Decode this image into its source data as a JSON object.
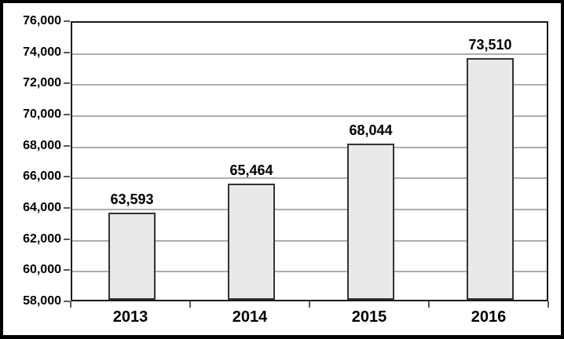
{
  "figure": {
    "background": "#ffffff",
    "border_color": "#000000"
  },
  "chart_data": {
    "type": "bar",
    "title": "",
    "xlabel": "",
    "ylabel": "",
    "categories": [
      "2013",
      "2014",
      "2015",
      "2016"
    ],
    "values": [
      63593,
      65464,
      68044,
      73510
    ],
    "value_labels": [
      "63,593",
      "65,464",
      "68,044",
      "73,510"
    ],
    "ylim": [
      58000,
      76000
    ],
    "ytick_interval": 2000,
    "yticks": [
      58000,
      60000,
      62000,
      64000,
      66000,
      68000,
      70000,
      72000,
      74000,
      76000
    ],
    "ytick_labels": [
      "58,000",
      "60,000",
      "62,000",
      "64,000",
      "66,000",
      "68,000",
      "70,000",
      "72,000",
      "74,000",
      "76,000"
    ],
    "grid": true,
    "legend": false,
    "colors": {
      "bar_fill": "#e9e9e9",
      "bar_border": "#333333",
      "gridline": "#a0a0a0",
      "axis": "#1a1a1a",
      "tick": "#595959",
      "text": "#000000"
    }
  }
}
